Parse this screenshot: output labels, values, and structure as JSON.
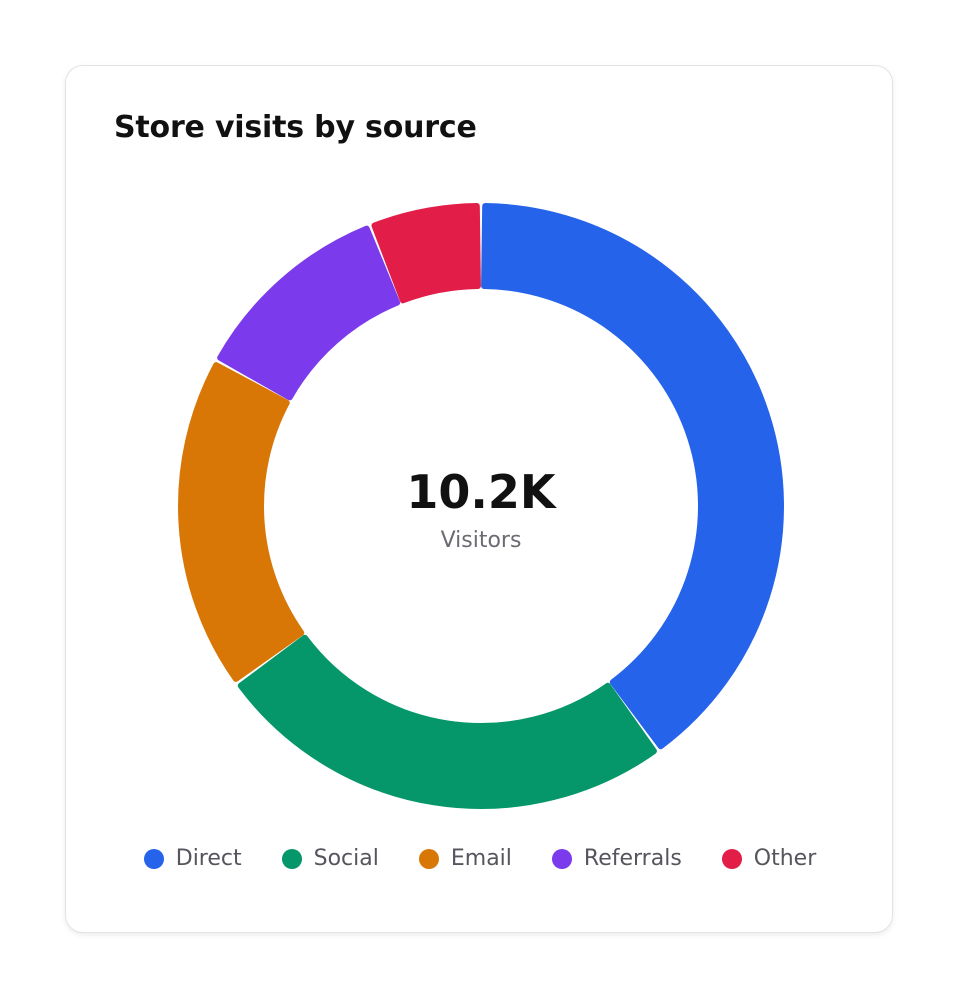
{
  "card": {
    "title": "Store visits by source"
  },
  "center": {
    "value": "10.2K",
    "label": "Visitors"
  },
  "chart_data": {
    "type": "pie",
    "style": "donut",
    "title": "Store visits by source",
    "total_label": "10.2K",
    "total_caption": "Visitors",
    "unit": "% of visitors",
    "categories": [
      "Direct",
      "Social",
      "Email",
      "Referrals",
      "Other"
    ],
    "values": [
      40,
      25,
      18,
      11,
      6
    ],
    "colors": [
      "#2563eb",
      "#059669",
      "#d97706",
      "#7c3aed",
      "#e11d48"
    ],
    "legend_position": "bottom",
    "start_angle": "top",
    "direction": "clockwise"
  }
}
